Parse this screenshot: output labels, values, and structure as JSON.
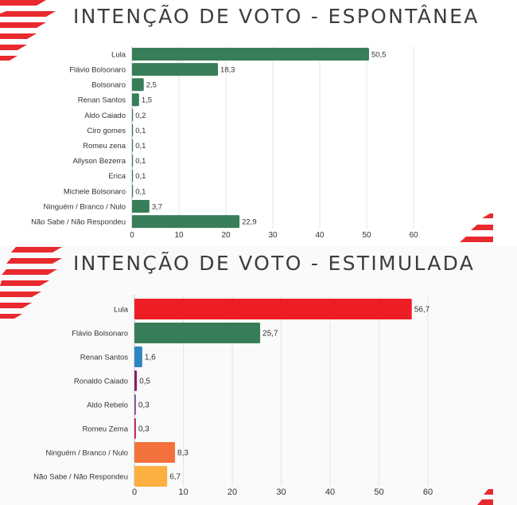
{
  "chart_data": [
    {
      "type": "bar",
      "orientation": "horizontal",
      "title": "INTENÇÃO DE VOTO - ESPONTÂNEA",
      "categories": [
        "Lula",
        "Flávio Bolsonaro",
        "Bolsonaro",
        "Renan Santos",
        "Aldo Caiado",
        "Ciro gomes",
        "Romeu zena",
        "Allyson Bezerra",
        "Erica",
        "Michele Bolsonaro",
        "Ninguém / Branco / Nulo",
        "Não Sabe / Não Respondeu"
      ],
      "values": [
        50.5,
        18.3,
        2.5,
        1.5,
        0.2,
        0.1,
        0.1,
        0.1,
        0.1,
        0.1,
        3.7,
        22.9
      ],
      "value_labels": [
        "50,5",
        "18,3",
        "2,5",
        "1,5",
        "0,2",
        "0,1",
        "0,1",
        "0,1",
        "0,1",
        "0,1",
        "3,7",
        "22,9"
      ],
      "colors": [
        "#377e58",
        "#377e58",
        "#377e58",
        "#377e58",
        "#377e58",
        "#377e58",
        "#377e58",
        "#377e58",
        "#377e58",
        "#377e58",
        "#377e58",
        "#377e58"
      ],
      "xlim": [
        0,
        60
      ],
      "xticks": [
        0,
        10,
        20,
        30,
        40,
        50,
        60
      ],
      "grid": true,
      "xlabel": "",
      "ylabel": ""
    },
    {
      "type": "bar",
      "orientation": "horizontal",
      "title": "INTENÇÃO DE VOTO - ESTIMULADA",
      "categories": [
        "Lula",
        "Flávio Bolsonaro",
        "Renan Santos",
        "Ronaldo Caiado",
        "Aldo Rebelo",
        "Romeu Zema",
        "Ninguém / Branco / Nulo",
        "Não Sabe / Não Respondeu"
      ],
      "values": [
        56.7,
        25.7,
        1.6,
        0.5,
        0.3,
        0.3,
        8.3,
        6.7
      ],
      "value_labels": [
        "56,7",
        "25,7",
        "1,6",
        "0,5",
        "0,3",
        "0,3",
        "8,3",
        "6,7"
      ],
      "colors": [
        "#ee1c25",
        "#377e58",
        "#2e86c1",
        "#8e1e5f",
        "#7b4fa0",
        "#c2185b",
        "#f3713c",
        "#fbb040"
      ],
      "xlim": [
        0,
        60
      ],
      "xticks": [
        0,
        10,
        20,
        30,
        40,
        50,
        60
      ],
      "grid": true,
      "xlabel": "",
      "ylabel": ""
    }
  ],
  "decoration": {
    "stripe_color": "#e8292e"
  }
}
